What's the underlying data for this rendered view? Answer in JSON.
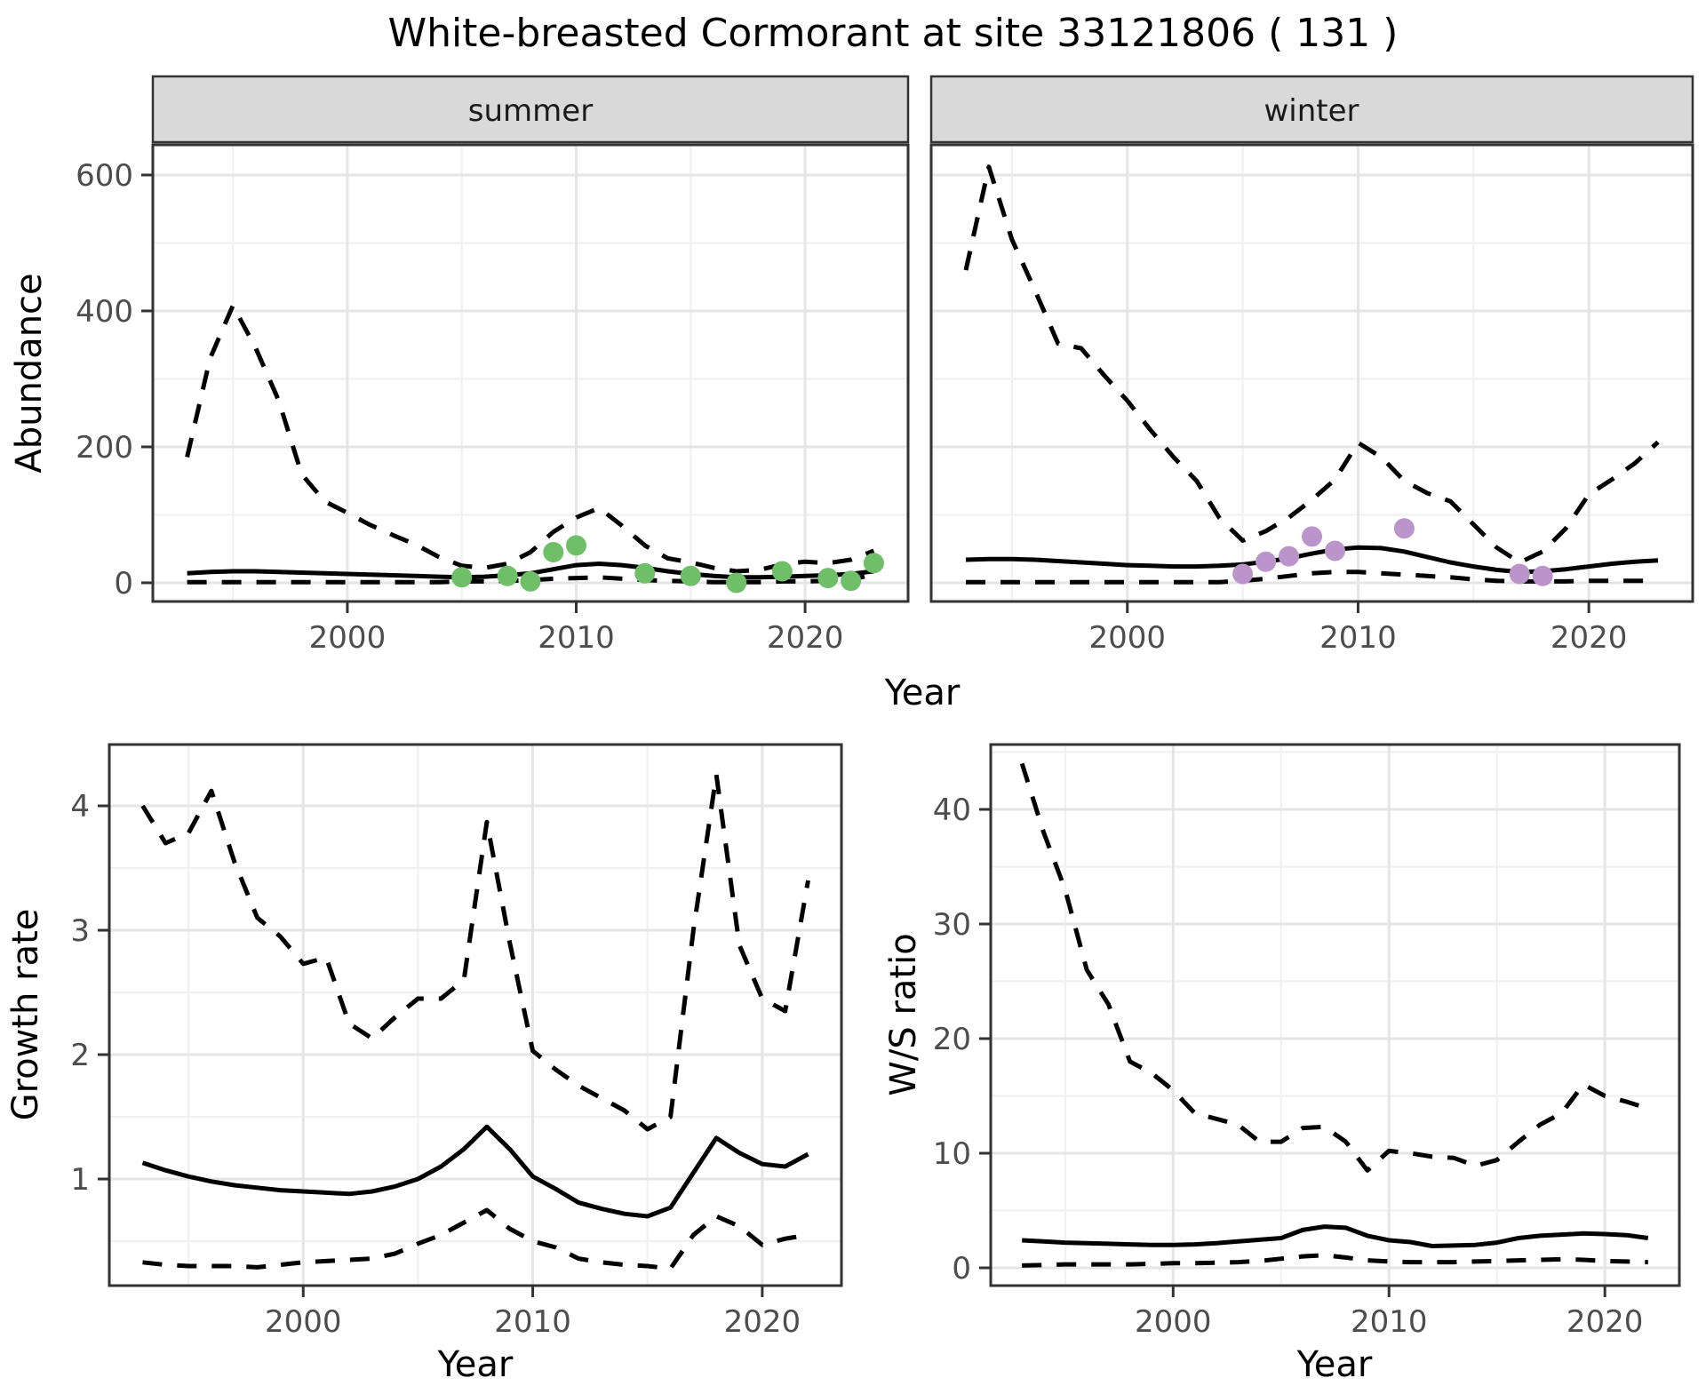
{
  "title": "White-breasted Cormorant at site 33121806 ( 131 )",
  "axes": {
    "abundance_label": "Abundance",
    "growth_label": "Growth rate",
    "ws_label": "W/S ratio",
    "year_label": "Year"
  },
  "facets": [
    "summer",
    "winter"
  ],
  "colors": {
    "summer_point": "#6ebf68",
    "winter_point": "#bb94cb",
    "line": "#000000",
    "strip_fill": "#d9d9d9",
    "strip_border": "#333333",
    "panel_border": "#333333",
    "grid_major": "#e5e5e5",
    "grid_minor": "#f1f1f1",
    "tick_mark": "#333333",
    "tick_label": "#4d4d4d"
  },
  "chart_data": [
    {
      "id": "abundance_summer",
      "type": "line",
      "facet": "summer",
      "title": "",
      "xlabel": "Year",
      "ylabel": "Abundance",
      "xlim": [
        1991.5,
        2024.5
      ],
      "ylim": [
        -27.5,
        644.4
      ],
      "xticks": [
        2000,
        2010,
        2020
      ],
      "yticks": [
        0,
        200,
        400,
        600
      ],
      "xminor": [
        1995,
        2005,
        2015
      ],
      "yminor": [
        100,
        300,
        500
      ],
      "x": [
        1993,
        1994,
        1995,
        1996,
        1997,
        1998,
        1999,
        2000,
        2001,
        2002,
        2003,
        2004,
        2005,
        2006,
        2007,
        2008,
        2009,
        2010,
        2011,
        2012,
        2013,
        2014,
        2015,
        2016,
        2017,
        2018,
        2019,
        2020,
        2021,
        2022,
        2023
      ],
      "series": [
        {
          "name": "fit",
          "style": "solid",
          "values": [
            14,
            16,
            17,
            17,
            16,
            15,
            14,
            13,
            12,
            11,
            10,
            9,
            8,
            9,
            11,
            14,
            20,
            26,
            28,
            26,
            22,
            17,
            13,
            10,
            8,
            8,
            9,
            10,
            11,
            13,
            17
          ]
        },
        {
          "name": "upper_ci",
          "style": "dashed",
          "values": [
            185,
            330,
            408,
            345,
            268,
            160,
            120,
            103,
            85,
            70,
            56,
            38,
            25,
            22,
            28,
            45,
            75,
            96,
            110,
            84,
            55,
            36,
            30,
            22,
            17,
            19,
            27,
            31,
            29,
            34,
            47
          ]
        },
        {
          "name": "lower_ci",
          "style": "dashed",
          "values": [
            1,
            1,
            1,
            1,
            1,
            1,
            1,
            1,
            1,
            1,
            1,
            1,
            2,
            2,
            3,
            4,
            6,
            7,
            8,
            6,
            4,
            3,
            2,
            1,
            1,
            1,
            2,
            2,
            3,
            5,
            12
          ]
        }
      ],
      "observations": {
        "color_key": "summer_point",
        "points": [
          [
            2005,
            8
          ],
          [
            2007,
            10
          ],
          [
            2008,
            2
          ],
          [
            2009,
            45
          ],
          [
            2010,
            55
          ],
          [
            2013,
            14
          ],
          [
            2015,
            10
          ],
          [
            2017,
            0
          ],
          [
            2019,
            17
          ],
          [
            2021,
            7
          ],
          [
            2022,
            3
          ],
          [
            2023,
            29
          ]
        ]
      }
    },
    {
      "id": "abundance_winter",
      "type": "line",
      "facet": "winter",
      "title": "",
      "xlabel": "Year",
      "ylabel": "Abundance",
      "xlim": [
        1991.5,
        2024.5
      ],
      "ylim": [
        -27.5,
        644.4
      ],
      "xticks": [
        2000,
        2010,
        2020
      ],
      "yticks": [
        0,
        200,
        400,
        600
      ],
      "xminor": [
        1995,
        2005,
        2015
      ],
      "yminor": [
        100,
        300,
        500
      ],
      "x": [
        1993,
        1994,
        1995,
        1996,
        1997,
        1998,
        1999,
        2000,
        2001,
        2002,
        2003,
        2004,
        2005,
        2006,
        2007,
        2008,
        2009,
        2010,
        2011,
        2012,
        2013,
        2014,
        2015,
        2016,
        2017,
        2018,
        2019,
        2020,
        2021,
        2022,
        2023
      ],
      "series": [
        {
          "name": "fit",
          "style": "solid",
          "values": [
            34,
            35,
            35,
            34,
            32,
            30,
            28,
            26,
            25,
            24,
            24,
            25,
            27,
            31,
            36,
            43,
            49,
            52,
            51,
            46,
            38,
            30,
            24,
            19,
            16,
            17,
            20,
            24,
            28,
            31,
            33
          ]
        },
        {
          "name": "upper_ci",
          "style": "dashed",
          "values": [
            460,
            612,
            505,
            430,
            352,
            345,
            305,
            268,
            225,
            185,
            150,
            95,
            62,
            76,
            96,
            122,
            152,
            206,
            185,
            150,
            132,
            120,
            86,
            52,
            30,
            46,
            80,
            130,
            152,
            176,
            207
          ]
        },
        {
          "name": "lower_ci",
          "style": "dashed",
          "values": [
            1,
            1,
            1,
            1,
            1,
            1,
            1,
            1,
            1,
            1,
            1,
            1,
            3,
            6,
            10,
            14,
            16,
            16,
            14,
            12,
            10,
            8,
            5,
            3,
            2,
            2,
            2,
            3,
            3,
            3,
            3
          ]
        }
      ],
      "observations": {
        "color_key": "winter_point",
        "points": [
          [
            2005,
            13
          ],
          [
            2006,
            31
          ],
          [
            2007,
            39
          ],
          [
            2008,
            68
          ],
          [
            2009,
            47
          ],
          [
            2012,
            80
          ],
          [
            2017,
            13
          ],
          [
            2018,
            10
          ]
        ]
      }
    },
    {
      "id": "growth_rate",
      "type": "line",
      "facet": null,
      "title": "",
      "xlabel": "Year",
      "ylabel": "Growth rate",
      "xlim": [
        1991.55,
        2023.45
      ],
      "ylim": [
        0.143,
        4.493
      ],
      "xticks": [
        2000,
        2010,
        2020
      ],
      "yticks": [
        1,
        2,
        3,
        4
      ],
      "xminor": [
        1995,
        2005,
        2015
      ],
      "yminor": [
        0.5,
        1.5,
        2.5,
        3.5
      ],
      "x": [
        1993,
        1994,
        1995,
        1996,
        1997,
        1998,
        1999,
        2000,
        2001,
        2002,
        2003,
        2004,
        2005,
        2006,
        2007,
        2008,
        2009,
        2010,
        2011,
        2012,
        2013,
        2014,
        2015,
        2016,
        2017,
        2018,
        2019,
        2020,
        2021,
        2022
      ],
      "series": [
        {
          "name": "fit",
          "style": "solid",
          "values": [
            1.13,
            1.07,
            1.02,
            0.98,
            0.95,
            0.93,
            0.91,
            0.9,
            0.89,
            0.88,
            0.9,
            0.94,
            1.0,
            1.1,
            1.24,
            1.42,
            1.24,
            1.02,
            0.92,
            0.81,
            0.76,
            0.72,
            0.7,
            0.77,
            1.05,
            1.33,
            1.21,
            1.12,
            1.1,
            1.2
          ]
        },
        {
          "name": "upper_ci",
          "style": "dashed",
          "values": [
            4.0,
            3.7,
            3.78,
            4.12,
            3.55,
            3.1,
            2.95,
            2.73,
            2.78,
            2.25,
            2.13,
            2.3,
            2.45,
            2.45,
            2.6,
            3.87,
            2.9,
            2.03,
            1.88,
            1.75,
            1.65,
            1.55,
            1.4,
            1.5,
            3.0,
            4.25,
            2.88,
            2.45,
            2.35,
            3.4
          ]
        },
        {
          "name": "lower_ci",
          "style": "dashed",
          "values": [
            0.33,
            0.31,
            0.3,
            0.3,
            0.3,
            0.29,
            0.31,
            0.33,
            0.34,
            0.35,
            0.36,
            0.4,
            0.48,
            0.55,
            0.65,
            0.75,
            0.6,
            0.5,
            0.45,
            0.36,
            0.33,
            0.31,
            0.3,
            0.28,
            0.55,
            0.7,
            0.62,
            0.47,
            0.52,
            0.55
          ]
        }
      ],
      "observations": {
        "color_key": null,
        "points": []
      }
    },
    {
      "id": "ws_ratio",
      "type": "line",
      "facet": null,
      "title": "",
      "xlabel": "Year",
      "ylabel": "W/S ratio",
      "xlim": [
        1991.55,
        2023.45
      ],
      "ylim": [
        -1.55,
        45.66
      ],
      "xticks": [
        2000,
        2010,
        2020
      ],
      "yticks": [
        0,
        10,
        20,
        30,
        40
      ],
      "xminor": [
        1995,
        2005,
        2015
      ],
      "yminor": [
        5,
        15,
        25,
        35,
        45
      ],
      "x": [
        1993,
        1994,
        1995,
        1996,
        1997,
        1998,
        1999,
        2000,
        2001,
        2002,
        2003,
        2004,
        2005,
        2006,
        2007,
        2008,
        2009,
        2010,
        2011,
        2012,
        2013,
        2014,
        2015,
        2016,
        2017,
        2018,
        2019,
        2020,
        2021,
        2022
      ],
      "series": [
        {
          "name": "fit",
          "style": "solid",
          "values": [
            2.4,
            2.3,
            2.2,
            2.15,
            2.1,
            2.05,
            2.0,
            2.0,
            2.05,
            2.15,
            2.3,
            2.45,
            2.6,
            3.3,
            3.6,
            3.5,
            2.8,
            2.4,
            2.25,
            1.9,
            1.95,
            2.0,
            2.2,
            2.6,
            2.8,
            2.9,
            3.0,
            2.95,
            2.85,
            2.6
          ]
        },
        {
          "name": "upper_ci",
          "style": "dashed",
          "values": [
            44,
            38,
            33,
            26,
            23,
            18,
            17,
            15.5,
            13.5,
            13,
            12.5,
            11,
            11,
            12.2,
            12.3,
            11,
            8.5,
            10.2,
            10,
            9.7,
            9.6,
            8.9,
            9.4,
            11,
            12.5,
            13.5,
            16,
            15,
            14.5,
            13.9
          ]
        },
        {
          "name": "lower_ci",
          "style": "dashed",
          "values": [
            0.2,
            0.25,
            0.3,
            0.3,
            0.3,
            0.3,
            0.35,
            0.4,
            0.4,
            0.45,
            0.5,
            0.6,
            0.8,
            1.0,
            1.1,
            0.9,
            0.65,
            0.55,
            0.5,
            0.5,
            0.5,
            0.55,
            0.6,
            0.65,
            0.7,
            0.75,
            0.7,
            0.6,
            0.55,
            0.5
          ]
        }
      ],
      "observations": {
        "color_key": null,
        "points": []
      }
    }
  ]
}
